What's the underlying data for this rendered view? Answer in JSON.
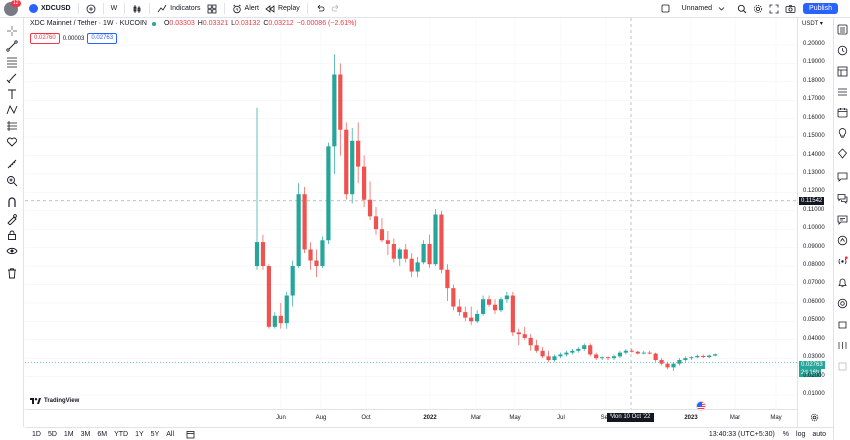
{
  "topbar": {
    "badge": "12",
    "symbol": "XDCUSD",
    "interval": "W",
    "indicators_label": "Indicators",
    "alert_label": "Alert",
    "replay_label": "Replay",
    "layout_name": "Unnamed",
    "publish_label": "Publish"
  },
  "legend": {
    "title": "XDC Mainnet / Tether · 1W · KUCOIN",
    "o": "O",
    "o_val": "0.03303",
    "h": "H",
    "h_val": "0.03321",
    "l": "L",
    "l_val": "0.03132",
    "c": "C",
    "c_val": "0.03212",
    "change": "−0.00086 (−2.61%)"
  },
  "orderbox": {
    "sell": "0.02760",
    "spread": "0.00003",
    "buy": "0.02763"
  },
  "yaxis": {
    "currency": "USDT",
    "ticks": [
      "0.20000",
      "0.19000",
      "0.18000",
      "0.17000",
      "0.16000",
      "0.15000",
      "0.14000",
      "0.13000",
      "0.12000",
      "0.11000",
      "0.10000",
      "0.09000",
      "0.08000",
      "0.07000",
      "0.06000",
      "0.05000",
      "0.04000",
      "0.03000",
      "0.02000",
      "0.01000"
    ],
    "crosshair_price": "0.11542",
    "last_price": "0.02763",
    "countdown": "2d 16h"
  },
  "xaxis": {
    "ticks": [
      "Jun",
      "Aug",
      "Oct",
      "2022",
      "Mar",
      "May",
      "Jul",
      "Sep",
      "2023",
      "Mar",
      "May"
    ],
    "crosshair_date": "Mon 10 Oct '22"
  },
  "bottombar": {
    "ranges": [
      "1D",
      "5D",
      "1M",
      "3M",
      "6M",
      "YTD",
      "1Y",
      "5Y",
      "All"
    ],
    "clock": "13:40:33 (UTC+5:30)",
    "percent": "%",
    "log": "log",
    "auto": "auto"
  },
  "watermark": "TradingView",
  "colors": {
    "up": "#26a69a",
    "down": "#ef5350",
    "accent": "#2962ff"
  },
  "chart_data": {
    "type": "candlestick",
    "title": "XDC Mainnet / Tether · 1W · KUCOIN",
    "ylim": [
      0.005,
      0.205
    ],
    "x_ticks": [
      "Jun",
      "Aug",
      "Oct",
      "2022",
      "Mar",
      "May",
      "Jul",
      "Sep",
      "2023",
      "Mar",
      "May"
    ],
    "candles": [
      {
        "o": 0.08,
        "h": 0.166,
        "l": 0.078,
        "c": 0.093
      },
      {
        "o": 0.093,
        "h": 0.097,
        "l": 0.078,
        "c": 0.08
      },
      {
        "o": 0.08,
        "h": 0.081,
        "l": 0.046,
        "c": 0.047
      },
      {
        "o": 0.047,
        "h": 0.055,
        "l": 0.046,
        "c": 0.053
      },
      {
        "o": 0.053,
        "h": 0.06,
        "l": 0.046,
        "c": 0.049
      },
      {
        "o": 0.049,
        "h": 0.066,
        "l": 0.046,
        "c": 0.064
      },
      {
        "o": 0.064,
        "h": 0.083,
        "l": 0.058,
        "c": 0.08
      },
      {
        "o": 0.08,
        "h": 0.125,
        "l": 0.079,
        "c": 0.119
      },
      {
        "o": 0.119,
        "h": 0.123,
        "l": 0.087,
        "c": 0.089
      },
      {
        "o": 0.089,
        "h": 0.093,
        "l": 0.078,
        "c": 0.083
      },
      {
        "o": 0.083,
        "h": 0.089,
        "l": 0.074,
        "c": 0.08
      },
      {
        "o": 0.08,
        "h": 0.096,
        "l": 0.079,
        "c": 0.094
      },
      {
        "o": 0.094,
        "h": 0.147,
        "l": 0.092,
        "c": 0.145
      },
      {
        "o": 0.145,
        "h": 0.195,
        "l": 0.13,
        "c": 0.184
      },
      {
        "o": 0.184,
        "h": 0.19,
        "l": 0.14,
        "c": 0.154
      },
      {
        "o": 0.154,
        "h": 0.158,
        "l": 0.116,
        "c": 0.119
      },
      {
        "o": 0.119,
        "h": 0.155,
        "l": 0.114,
        "c": 0.148
      },
      {
        "o": 0.148,
        "h": 0.158,
        "l": 0.125,
        "c": 0.134
      },
      {
        "o": 0.134,
        "h": 0.14,
        "l": 0.112,
        "c": 0.116
      },
      {
        "o": 0.116,
        "h": 0.126,
        "l": 0.105,
        "c": 0.107
      },
      {
        "o": 0.107,
        "h": 0.112,
        "l": 0.097,
        "c": 0.1
      },
      {
        "o": 0.1,
        "h": 0.106,
        "l": 0.093,
        "c": 0.094
      },
      {
        "o": 0.094,
        "h": 0.099,
        "l": 0.086,
        "c": 0.092
      },
      {
        "o": 0.092,
        "h": 0.095,
        "l": 0.082,
        "c": 0.084
      },
      {
        "o": 0.084,
        "h": 0.09,
        "l": 0.08,
        "c": 0.089
      },
      {
        "o": 0.089,
        "h": 0.092,
        "l": 0.082,
        "c": 0.084
      },
      {
        "o": 0.084,
        "h": 0.087,
        "l": 0.074,
        "c": 0.077
      },
      {
        "o": 0.077,
        "h": 0.085,
        "l": 0.074,
        "c": 0.082
      },
      {
        "o": 0.082,
        "h": 0.094,
        "l": 0.081,
        "c": 0.092
      },
      {
        "o": 0.092,
        "h": 0.097,
        "l": 0.079,
        "c": 0.081
      },
      {
        "o": 0.081,
        "h": 0.111,
        "l": 0.08,
        "c": 0.108
      },
      {
        "o": 0.108,
        "h": 0.11,
        "l": 0.076,
        "c": 0.078
      },
      {
        "o": 0.078,
        "h": 0.081,
        "l": 0.061,
        "c": 0.068
      },
      {
        "o": 0.068,
        "h": 0.07,
        "l": 0.056,
        "c": 0.058
      },
      {
        "o": 0.058,
        "h": 0.062,
        "l": 0.053,
        "c": 0.055
      },
      {
        "o": 0.055,
        "h": 0.058,
        "l": 0.05,
        "c": 0.052
      },
      {
        "o": 0.052,
        "h": 0.058,
        "l": 0.048,
        "c": 0.05
      },
      {
        "o": 0.05,
        "h": 0.056,
        "l": 0.049,
        "c": 0.054
      },
      {
        "o": 0.054,
        "h": 0.064,
        "l": 0.053,
        "c": 0.062
      },
      {
        "o": 0.062,
        "h": 0.064,
        "l": 0.058,
        "c": 0.059
      },
      {
        "o": 0.059,
        "h": 0.062,
        "l": 0.054,
        "c": 0.056
      },
      {
        "o": 0.056,
        "h": 0.063,
        "l": 0.055,
        "c": 0.062
      },
      {
        "o": 0.062,
        "h": 0.066,
        "l": 0.06,
        "c": 0.064
      },
      {
        "o": 0.064,
        "h": 0.066,
        "l": 0.042,
        "c": 0.044
      },
      {
        "o": 0.044,
        "h": 0.046,
        "l": 0.037,
        "c": 0.043
      },
      {
        "o": 0.043,
        "h": 0.047,
        "l": 0.04,
        "c": 0.041
      },
      {
        "o": 0.041,
        "h": 0.043,
        "l": 0.034,
        "c": 0.037
      },
      {
        "o": 0.037,
        "h": 0.04,
        "l": 0.033,
        "c": 0.034
      },
      {
        "o": 0.034,
        "h": 0.036,
        "l": 0.03,
        "c": 0.031
      },
      {
        "o": 0.031,
        "h": 0.034,
        "l": 0.028,
        "c": 0.029
      },
      {
        "o": 0.029,
        "h": 0.032,
        "l": 0.028,
        "c": 0.031
      },
      {
        "o": 0.031,
        "h": 0.033,
        "l": 0.03,
        "c": 0.032
      },
      {
        "o": 0.032,
        "h": 0.034,
        "l": 0.031,
        "c": 0.033
      },
      {
        "o": 0.033,
        "h": 0.035,
        "l": 0.032,
        "c": 0.034
      },
      {
        "o": 0.034,
        "h": 0.036,
        "l": 0.033,
        "c": 0.035
      },
      {
        "o": 0.035,
        "h": 0.038,
        "l": 0.034,
        "c": 0.037
      },
      {
        "o": 0.037,
        "h": 0.038,
        "l": 0.031,
        "c": 0.032
      },
      {
        "o": 0.032,
        "h": 0.033,
        "l": 0.029,
        "c": 0.03
      },
      {
        "o": 0.03,
        "h": 0.031,
        "l": 0.029,
        "c": 0.0305
      },
      {
        "o": 0.0305,
        "h": 0.031,
        "l": 0.029,
        "c": 0.03
      },
      {
        "o": 0.03,
        "h": 0.032,
        "l": 0.029,
        "c": 0.031
      },
      {
        "o": 0.031,
        "h": 0.034,
        "l": 0.03,
        "c": 0.033
      },
      {
        "o": 0.033,
        "h": 0.035,
        "l": 0.032,
        "c": 0.034
      },
      {
        "o": 0.034,
        "h": 0.035,
        "l": 0.033,
        "c": 0.0335
      },
      {
        "o": 0.0335,
        "h": 0.034,
        "l": 0.032,
        "c": 0.0325
      },
      {
        "o": 0.0325,
        "h": 0.034,
        "l": 0.032,
        "c": 0.033
      },
      {
        "o": 0.033,
        "h": 0.034,
        "l": 0.032,
        "c": 0.0325
      },
      {
        "o": 0.0325,
        "h": 0.033,
        "l": 0.028,
        "c": 0.029
      },
      {
        "o": 0.029,
        "h": 0.03,
        "l": 0.026,
        "c": 0.027
      },
      {
        "o": 0.027,
        "h": 0.028,
        "l": 0.024,
        "c": 0.025
      },
      {
        "o": 0.025,
        "h": 0.028,
        "l": 0.023,
        "c": 0.027
      },
      {
        "o": 0.027,
        "h": 0.03,
        "l": 0.026,
        "c": 0.029
      },
      {
        "o": 0.029,
        "h": 0.031,
        "l": 0.028,
        "c": 0.03
      },
      {
        "o": 0.03,
        "h": 0.031,
        "l": 0.029,
        "c": 0.0305
      },
      {
        "o": 0.0305,
        "h": 0.032,
        "l": 0.03,
        "c": 0.0312
      },
      {
        "o": 0.0312,
        "h": 0.032,
        "l": 0.03,
        "c": 0.0306
      },
      {
        "o": 0.0306,
        "h": 0.032,
        "l": 0.03,
        "c": 0.0314
      },
      {
        "o": 0.0314,
        "h": 0.0325,
        "l": 0.031,
        "c": 0.0321
      }
    ]
  }
}
